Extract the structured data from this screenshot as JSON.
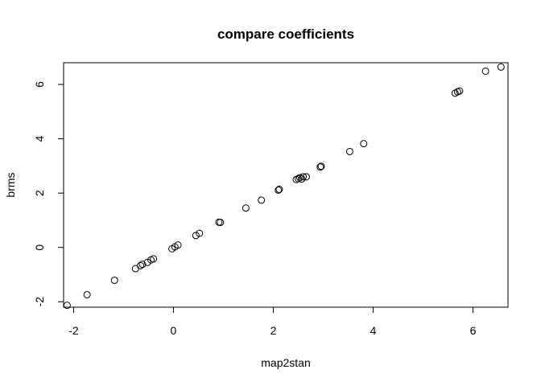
{
  "chart_data": {
    "type": "scatter",
    "title": "compare coefficients",
    "xlabel": "map2stan",
    "ylabel": "brms",
    "xlim": [
      -2.2,
      6.7
    ],
    "ylim": [
      -2.2,
      6.8
    ],
    "xticks": [
      -2,
      0,
      2,
      4,
      6
    ],
    "yticks": [
      -2,
      0,
      2,
      4,
      6
    ],
    "xtick_labels": [
      "-2",
      "0",
      "2",
      "4",
      "6"
    ],
    "ytick_labels": [
      "-2",
      "0",
      "2",
      "4",
      "6"
    ],
    "grid": false,
    "marker": "open-circle",
    "points": [
      {
        "x": -2.13,
        "y": -2.13
      },
      {
        "x": -1.73,
        "y": -1.74
      },
      {
        "x": -1.18,
        "y": -1.21
      },
      {
        "x": -0.76,
        "y": -0.78
      },
      {
        "x": -0.66,
        "y": -0.67
      },
      {
        "x": -0.62,
        "y": -0.62
      },
      {
        "x": -0.52,
        "y": -0.55
      },
      {
        "x": -0.45,
        "y": -0.46
      },
      {
        "x": -0.4,
        "y": -0.42
      },
      {
        "x": -0.03,
        "y": -0.05
      },
      {
        "x": 0.03,
        "y": 0.02
      },
      {
        "x": 0.09,
        "y": 0.09
      },
      {
        "x": 0.45,
        "y": 0.44
      },
      {
        "x": 0.52,
        "y": 0.52
      },
      {
        "x": 0.91,
        "y": 0.93
      },
      {
        "x": 0.94,
        "y": 0.92
      },
      {
        "x": 1.45,
        "y": 1.45
      },
      {
        "x": 1.76,
        "y": 1.74
      },
      {
        "x": 2.1,
        "y": 2.11
      },
      {
        "x": 2.12,
        "y": 2.14
      },
      {
        "x": 2.46,
        "y": 2.5
      },
      {
        "x": 2.5,
        "y": 2.53
      },
      {
        "x": 2.53,
        "y": 2.57
      },
      {
        "x": 2.57,
        "y": 2.52
      },
      {
        "x": 2.6,
        "y": 2.6
      },
      {
        "x": 2.66,
        "y": 2.6
      },
      {
        "x": 2.94,
        "y": 2.96
      },
      {
        "x": 2.96,
        "y": 2.99
      },
      {
        "x": 3.53,
        "y": 3.53
      },
      {
        "x": 3.81,
        "y": 3.82
      },
      {
        "x": 5.64,
        "y": 5.68
      },
      {
        "x": 5.69,
        "y": 5.73
      },
      {
        "x": 5.73,
        "y": 5.76
      },
      {
        "x": 6.25,
        "y": 6.49
      },
      {
        "x": 6.56,
        "y": 6.64
      }
    ]
  }
}
